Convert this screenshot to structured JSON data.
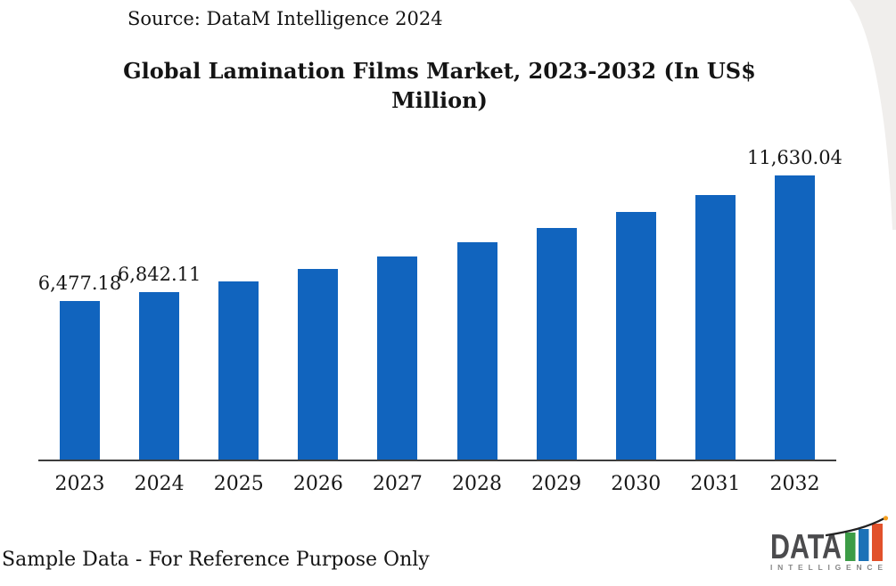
{
  "header": {
    "source": "Source: DataM Intelligence 2024",
    "title_line1": "Global Lamination Films Market, 2023-2032 (In US$",
    "title_line2": "Million)"
  },
  "chart_data": {
    "type": "bar",
    "title": "Global Lamination Films Market, 2023-2032 (In US$ Million)",
    "categories": [
      "2023",
      "2024",
      "2025",
      "2026",
      "2027",
      "2028",
      "2029",
      "2030",
      "2031",
      "2032"
    ],
    "values": [
      6477.18,
      6842.11,
      7300,
      7820,
      8320,
      8890,
      9470,
      10130,
      10820,
      11630.04
    ],
    "data_labels": [
      "6,477.18",
      "6,842.11",
      "",
      "",
      "",
      "",
      "",
      "",
      "",
      "11,630.04"
    ],
    "ylim": [
      0,
      11630.04
    ],
    "grid": false,
    "legend": "none",
    "bar_color": "#1164BE",
    "axis_line_color": "#3d3d3d"
  },
  "footer": {
    "note": "Sample Data - For Reference Purpose Only"
  },
  "logo": {
    "text": "DATA",
    "subtext": "INTELLIGENCE",
    "colors": {
      "text": "#4b4b4d",
      "subtext": "#878787",
      "bar_green": "#3C9C46",
      "bar_blue": "#1C72B7",
      "bar_orange": "#E1512B",
      "swoosh": "#222222",
      "dot": "#F59F1E"
    }
  },
  "decor": {
    "corner_color": "#f0eeec"
  }
}
